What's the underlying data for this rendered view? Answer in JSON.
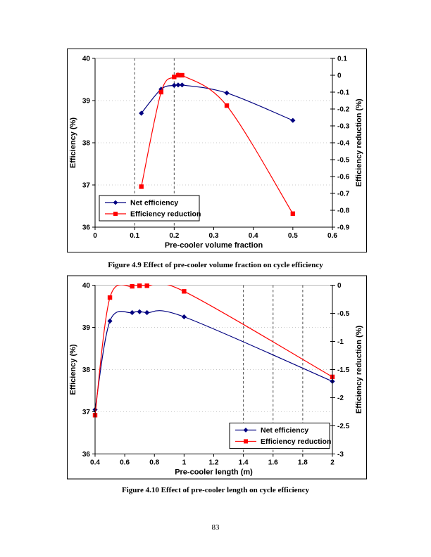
{
  "page": {
    "number": "83"
  },
  "figures": [
    {
      "caption": "Figure 4.9 Effect of pre-cooler volume fraction on cycle efficiency"
    },
    {
      "caption": "Figure 4.10 Effect of pre-cooler length on cycle efficiency"
    }
  ],
  "colors": {
    "net_efficiency": "#000080",
    "efficiency_reduction": "#FF0000",
    "vline": "#4d4d4d",
    "gridline": "#c8c8c8",
    "plot_frame": "#a6a6a6",
    "axis": "#000000"
  },
  "chart_data": [
    {
      "type": "line",
      "title": "",
      "xlabel": "Pre-cooler volume fraction",
      "ylabel_left": "Efficiency (%)",
      "ylabel_right": "Efficiency reduction (%)",
      "xlim": [
        0,
        0.6
      ],
      "ylim_left": [
        36,
        40
      ],
      "ylim_right": [
        -0.9,
        0.1
      ],
      "xticks": {
        "values": [
          0,
          0.1,
          0.2,
          0.3,
          0.4,
          0.5,
          0.6
        ],
        "labels": [
          "0",
          "0.1",
          "0.2",
          "0.3",
          "0.4",
          "0.5",
          "0.6"
        ]
      },
      "yticks_left": {
        "values": [
          36,
          37,
          38,
          39,
          40
        ],
        "labels": [
          "36",
          "37",
          "38",
          "39",
          "40"
        ]
      },
      "yticks_right": {
        "values": [
          0.1,
          0,
          -0.1,
          -0.2,
          -0.3,
          -0.4,
          -0.5,
          -0.6,
          -0.7,
          -0.8,
          -0.9
        ],
        "labels": [
          "0.1",
          "0",
          "-0.1",
          "-0.2",
          "-0.3",
          "-0.4",
          "-0.5",
          "-0.6",
          "-0.7",
          "-0.8",
          "-0.9"
        ]
      },
      "gridlines_left": [
        37,
        38,
        39
      ],
      "vlines": [
        0.1,
        0.2
      ],
      "grid": "horizontal-dotted",
      "legend_position": "bottom-left",
      "smooth": true,
      "series": [
        {
          "name": "Net efficiency",
          "axis": "left",
          "color": "#000080",
          "marker": "diamond",
          "x": [
            0.117,
            0.167,
            0.2,
            0.21,
            0.22,
            0.333,
            0.5
          ],
          "y": [
            38.7,
            39.27,
            39.36,
            39.37,
            39.37,
            39.18,
            38.53
          ]
        },
        {
          "name": "Efficiency reduction",
          "axis": "right",
          "color": "#FF0000",
          "marker": "square",
          "x": [
            0.117,
            0.167,
            0.2,
            0.21,
            0.22,
            0.333,
            0.5
          ],
          "y": [
            -0.66,
            -0.1,
            -0.01,
            0.0,
            0.0,
            -0.18,
            -0.82
          ]
        }
      ]
    },
    {
      "type": "line",
      "title": "",
      "xlabel": "Pre-cooler length (m)",
      "ylabel_left": "Efficiency (%)",
      "ylabel_right": "Efficiency reduction (%)",
      "xlim": [
        0.4,
        2
      ],
      "ylim_left": [
        36,
        40
      ],
      "ylim_right": [
        -3,
        0
      ],
      "xticks": {
        "values": [
          0.4,
          0.6,
          0.8,
          1,
          1.2,
          1.4,
          1.6,
          1.8,
          2
        ],
        "labels": [
          "0.4",
          "0.6",
          "0.8",
          "1",
          "1.2",
          "1.4",
          "1.6",
          "1.8",
          "2"
        ]
      },
      "yticks_left": {
        "values": [
          36,
          37,
          38,
          39,
          40
        ],
        "labels": [
          "36",
          "37",
          "38",
          "39",
          "40"
        ]
      },
      "yticks_right": {
        "values": [
          0,
          -0.5,
          -1,
          -1.5,
          -2,
          -2.5,
          -3
        ],
        "labels": [
          "0",
          "-0.5",
          "-1",
          "-1.5",
          "-2",
          "-2.5",
          "-3"
        ]
      },
      "gridlines_left": [
        37,
        38,
        39
      ],
      "vlines": [
        1.4,
        1.6,
        1.8
      ],
      "grid": "horizontal-dotted",
      "legend_position": "bottom-right",
      "smooth": true,
      "series": [
        {
          "name": "Net efficiency",
          "axis": "left",
          "color": "#000080",
          "marker": "diamond",
          "x": [
            0.4,
            0.5,
            0.65,
            0.7,
            0.75,
            1.0,
            2.0
          ],
          "y": [
            37.05,
            39.15,
            39.35,
            39.37,
            39.35,
            39.25,
            37.72
          ]
        },
        {
          "name": "Efficiency reduction",
          "axis": "right",
          "color": "#FF0000",
          "marker": "square",
          "x": [
            0.4,
            0.5,
            0.65,
            0.7,
            0.75,
            1.0,
            2.0
          ],
          "y": [
            -2.31,
            -0.22,
            -0.02,
            -0.01,
            -0.01,
            -0.11,
            -1.63
          ]
        }
      ]
    }
  ]
}
